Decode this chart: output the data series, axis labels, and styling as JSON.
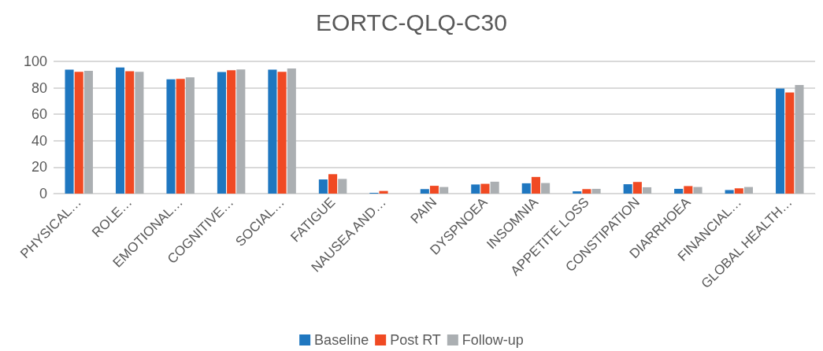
{
  "chart_data": {
    "type": "bar",
    "title": "EORTC-QLQ-C30",
    "categories": [
      "PHYSICAL…",
      "ROLE…",
      "EMOTIONAL…",
      "COGNITIVE…",
      "SOCIAL…",
      "FATIGUE",
      "NAUSEA AND…",
      "PAIN",
      "DYSPNOEA",
      "INSOMNIA",
      "APPETITE LOSS",
      "CONSTIPATION",
      "DIARRHOEA",
      "FINANCIAL…",
      "GLOBAL HEALTH…"
    ],
    "series": [
      {
        "name": "Baseline",
        "color": "#1f77c0",
        "values": [
          93.7,
          95.4,
          86.5,
          91.9,
          93.7,
          10.7,
          0.6,
          3.4,
          6.9,
          7.8,
          1.7,
          7.1,
          3.6,
          2.7,
          79.4
        ]
      },
      {
        "name": "Post RT",
        "color": "#f04a23",
        "values": [
          92.1,
          92.5,
          86.7,
          93.3,
          92.1,
          14.7,
          2,
          5.9,
          7.4,
          12.6,
          3.4,
          8.8,
          5.7,
          4,
          76.5
        ]
      },
      {
        "name": "Follow-up",
        "color": "#abafb2",
        "values": [
          92.9,
          92.1,
          87.9,
          93.9,
          94.7,
          11.1,
          0,
          5,
          9,
          8,
          3.6,
          4.8,
          5,
          5,
          82.1
        ]
      }
    ],
    "ylim": [
      0,
      100
    ],
    "yticks": [
      0,
      20,
      40,
      60,
      80,
      100
    ],
    "grid": "y",
    "legend": "bottom"
  }
}
